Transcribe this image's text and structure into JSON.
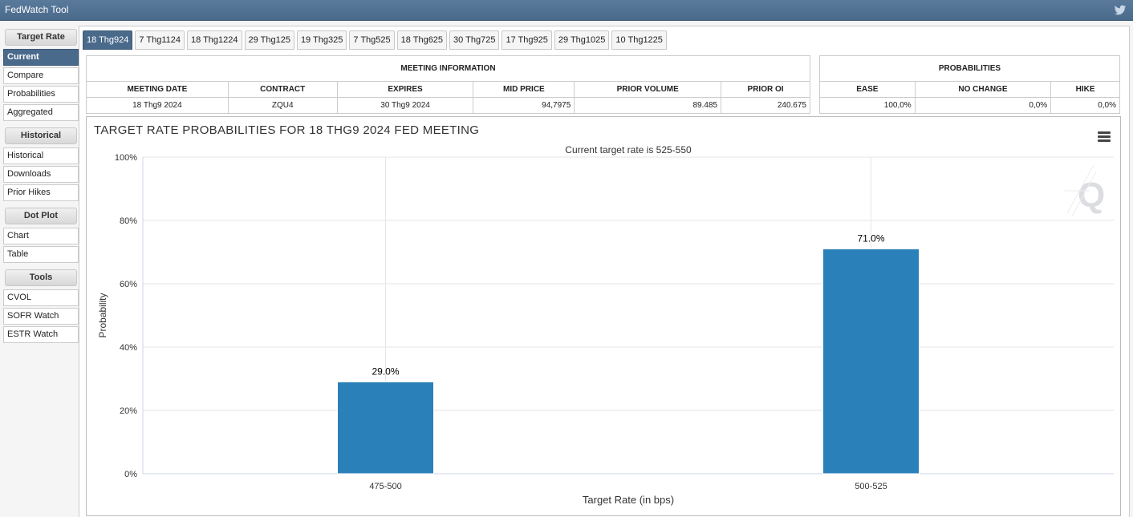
{
  "app": {
    "title": "FedWatch Tool"
  },
  "sidebar": {
    "groups": [
      {
        "header": "Target Rate",
        "items": [
          "Current",
          "Compare",
          "Probabilities",
          "Aggregated"
        ]
      },
      {
        "header": "Historical",
        "items": [
          "Historical",
          "Downloads",
          "Prior Hikes"
        ]
      },
      {
        "header": "Dot Plot",
        "items": [
          "Chart",
          "Table"
        ]
      },
      {
        "header": "Tools",
        "items": [
          "CVOL",
          "SOFR Watch",
          "ESTR Watch"
        ]
      }
    ]
  },
  "tabs": [
    "18 Thg924",
    "7 Thg1124",
    "18 Thg1224",
    "29 Thg125",
    "19 Thg325",
    "7 Thg525",
    "18 Thg625",
    "30 Thg725",
    "17 Thg925",
    "29 Thg1025",
    "10 Thg1225"
  ],
  "meeting_info": {
    "header": "MEETING INFORMATION",
    "columns": [
      "MEETING DATE",
      "CONTRACT",
      "EXPIRES",
      "MID PRICE",
      "PRIOR VOLUME",
      "PRIOR OI"
    ],
    "row": [
      "18 Thg9 2024",
      "ZQU4",
      "30 Thg9 2024",
      "94,7975",
      "89.485",
      "240.675"
    ]
  },
  "probabilities": {
    "header": "PROBABILITIES",
    "columns": [
      "EASE",
      "NO CHANGE",
      "HIKE"
    ],
    "row": [
      "100,0%",
      "0,0%",
      "0,0%"
    ]
  },
  "chart_data": {
    "type": "bar",
    "title": "TARGET RATE PROBABILITIES FOR 18 THG9 2024 FED MEETING",
    "subtitle": "Current target rate is 525-550",
    "xlabel": "Target Rate (in bps)",
    "ylabel": "Probability",
    "categories": [
      "475-500",
      "500-525"
    ],
    "values": [
      29.0,
      71.0
    ],
    "data_labels": [
      "29.0%",
      "71.0%"
    ],
    "ylim": [
      0,
      100
    ],
    "yticks": [
      "0%",
      "20%",
      "40%",
      "60%",
      "80%",
      "100%"
    ],
    "ytick_values": [
      0,
      20,
      40,
      60,
      80,
      100
    ],
    "grid": true,
    "bar_color": "#2a80b9"
  }
}
